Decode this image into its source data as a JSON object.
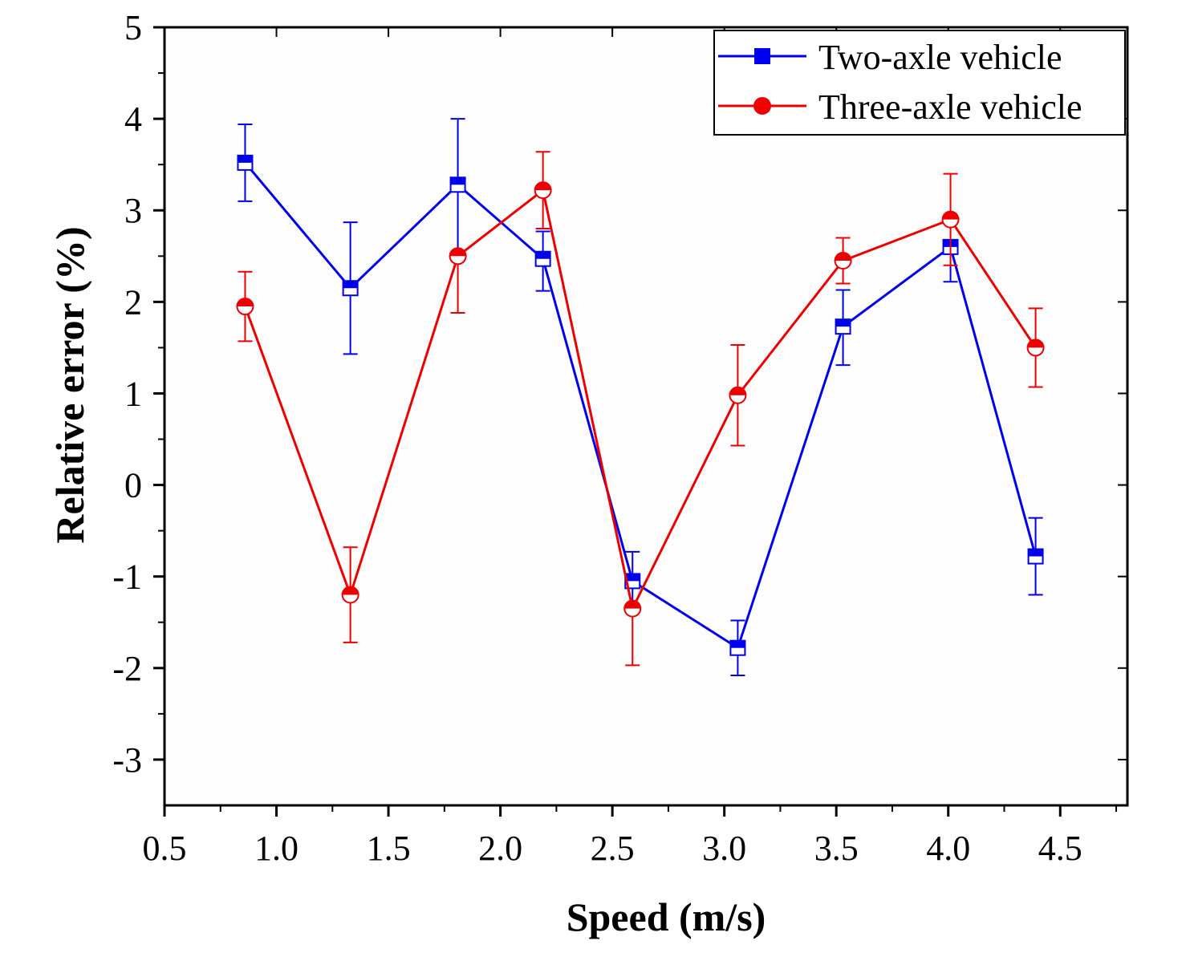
{
  "chart_data": {
    "type": "line",
    "xlabel": "Speed (m/s)",
    "ylabel": "Relative error (%)",
    "xlim": [
      0.5,
      4.8
    ],
    "ylim": [
      -3.5,
      5
    ],
    "x_ticks": [
      "0.5",
      "1.0",
      "1.5",
      "2.0",
      "2.5",
      "3.0",
      "3.5",
      "4.0",
      "4.5"
    ],
    "x_tick_values": [
      0.5,
      1.0,
      1.5,
      2.0,
      2.5,
      3.0,
      3.5,
      4.0,
      4.5
    ],
    "y_ticks": [
      "-3",
      "-2",
      "-1",
      "0",
      "1",
      "2",
      "3",
      "4",
      "5"
    ],
    "y_tick_values": [
      -3,
      -2,
      -1,
      0,
      1,
      2,
      3,
      4,
      5
    ],
    "legend_position": "top-right",
    "grid": false,
    "series": [
      {
        "name": "Two-axle vehicle",
        "color": "#0000ee",
        "marker": "square",
        "x": [
          0.86,
          1.33,
          1.81,
          2.19,
          2.59,
          3.06,
          3.53,
          4.01,
          4.39
        ],
        "y": [
          3.52,
          2.15,
          3.28,
          2.47,
          -1.05,
          -1.78,
          1.73,
          2.6,
          -0.78
        ],
        "err_low": [
          0.42,
          0.72,
          0.75,
          0.35,
          0.32,
          0.3,
          0.42,
          0.38,
          0.42
        ],
        "err_high": [
          0.42,
          0.72,
          0.72,
          0.3,
          0.32,
          0.3,
          0.4,
          0.3,
          0.42
        ]
      },
      {
        "name": "Three-axle vehicle",
        "color": "#ee0000",
        "marker": "circle",
        "x": [
          0.86,
          1.33,
          1.81,
          2.19,
          2.59,
          3.06,
          3.53,
          4.01,
          4.39
        ],
        "y": [
          1.95,
          -1.2,
          2.5,
          3.22,
          -1.35,
          0.98,
          2.45,
          2.9,
          1.5
        ],
        "err_low": [
          0.38,
          0.52,
          0.62,
          0.42,
          0.62,
          0.55,
          0.25,
          0.5,
          0.43
        ],
        "err_high": [
          0.38,
          0.52,
          0.0,
          0.42,
          0.0,
          0.55,
          0.25,
          0.5,
          0.43
        ]
      }
    ]
  }
}
